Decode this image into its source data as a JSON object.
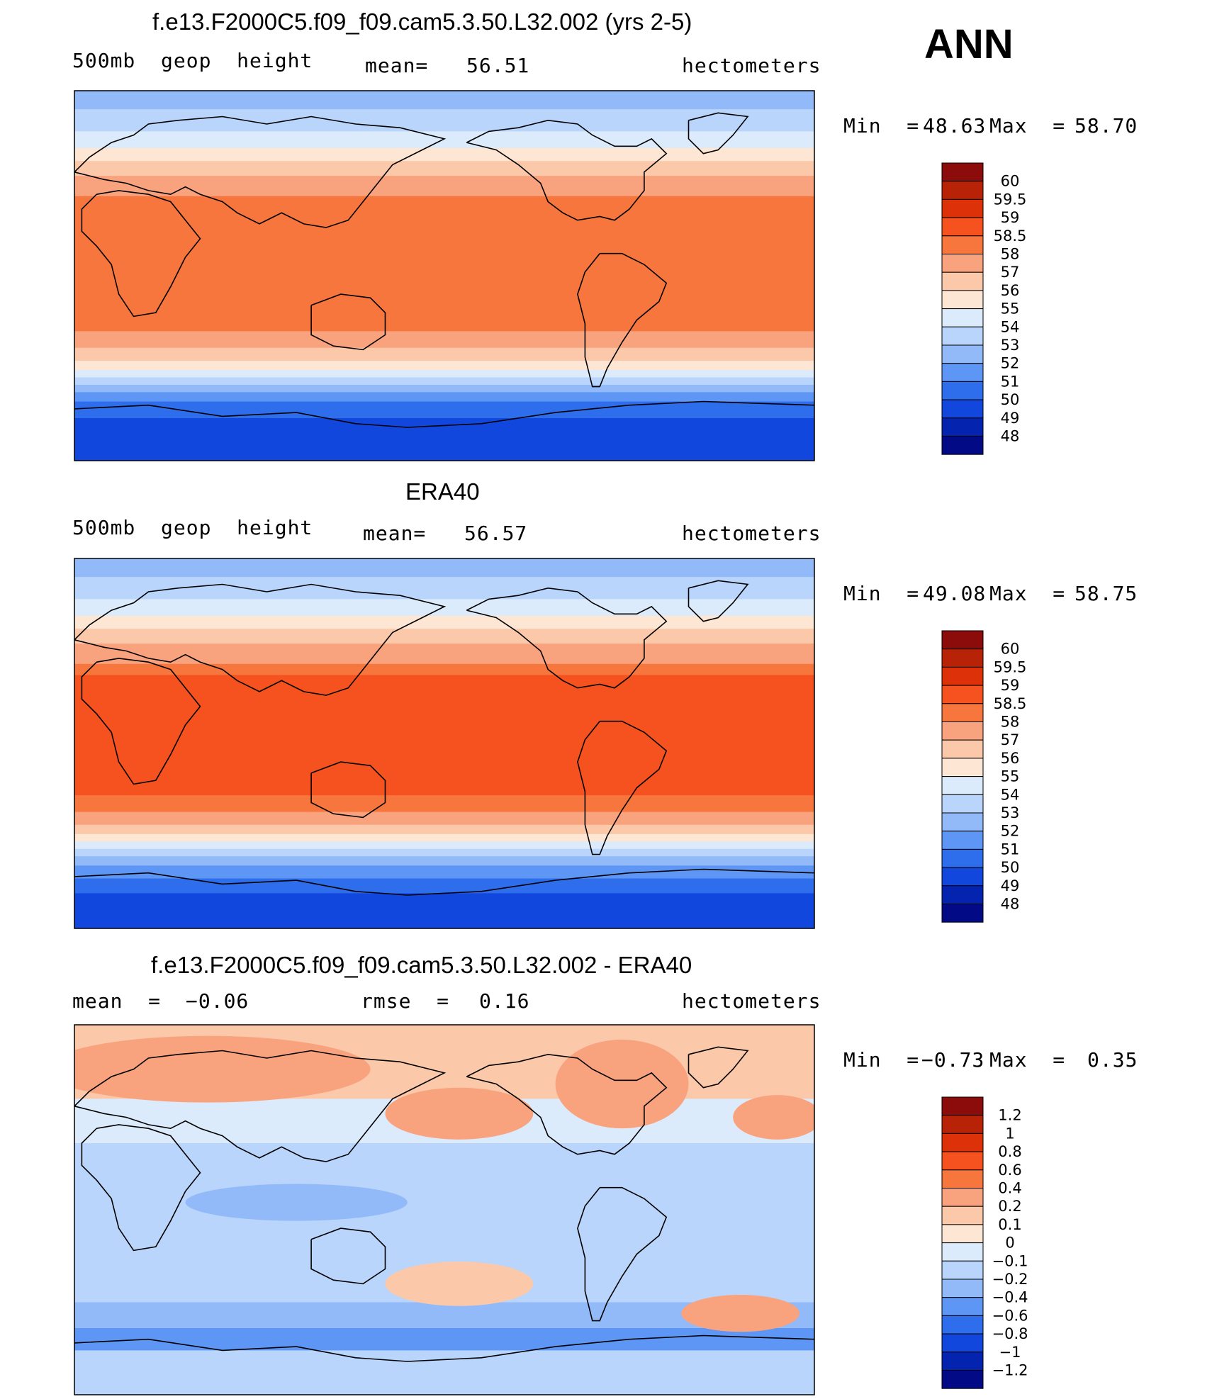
{
  "season": "ANN",
  "chart_data": [
    {
      "type": "heatmap",
      "title": "f.e13.F2000C5.f09_f09.cam5.3.50.L32.002 (yrs 2-5)",
      "variable": "500mb  geop  height",
      "stat_label": "mean=",
      "stat_value": "56.51",
      "units": "hectometers",
      "min_label": "Min  =",
      "min_value": "48.63",
      "max_label": "Max  =",
      "max_value": "58.70",
      "colorbar": {
        "labels": [
          "60",
          "59.5",
          "59",
          "58.5",
          "58",
          "57",
          "56",
          "55",
          "54",
          "53",
          "52",
          "51",
          "50",
          "49",
          "48"
        ],
        "colors": [
          "#8c0c0c",
          "#b82207",
          "#dd3109",
          "#f5521f",
          "#f7763e",
          "#f9a27e",
          "#fbc9aa",
          "#fde6d4",
          "#dcebfb",
          "#b9d5fb",
          "#92baf9",
          "#5e96f5",
          "#2e6deb",
          "#1247de",
          "#0424b0",
          "#020a86"
        ]
      },
      "map_bands": [
        {
          "to": 0.05,
          "color": "#92baf9"
        },
        {
          "to": 0.11,
          "color": "#b9d5fb"
        },
        {
          "to": 0.155,
          "color": "#dcebfb"
        },
        {
          "to": 0.19,
          "color": "#fde6d4"
        },
        {
          "to": 0.23,
          "color": "#fbc9aa"
        },
        {
          "to": 0.285,
          "color": "#f9a27e"
        },
        {
          "to": 0.65,
          "color": "#f7763e"
        },
        {
          "to": 0.695,
          "color": "#f9a27e"
        },
        {
          "to": 0.73,
          "color": "#fbc9aa"
        },
        {
          "to": 0.755,
          "color": "#fde6d4"
        },
        {
          "to": 0.775,
          "color": "#dcebfb"
        },
        {
          "to": 0.795,
          "color": "#b9d5fb"
        },
        {
          "to": 0.815,
          "color": "#92baf9"
        },
        {
          "to": 0.84,
          "color": "#5e96f5"
        },
        {
          "to": 0.885,
          "color": "#2e6deb"
        },
        {
          "to": 1.0,
          "color": "#1247de"
        }
      ]
    },
    {
      "type": "heatmap",
      "title": "ERA40",
      "variable": "500mb  geop  height",
      "stat_label": "mean=",
      "stat_value": "56.57",
      "units": "hectometers",
      "min_label": "Min  =",
      "min_value": "49.08",
      "max_label": "Max  =",
      "max_value": "58.75",
      "colorbar": {
        "labels": [
          "60",
          "59.5",
          "59",
          "58.5",
          "58",
          "57",
          "56",
          "55",
          "54",
          "53",
          "52",
          "51",
          "50",
          "49",
          "48"
        ],
        "colors": [
          "#8c0c0c",
          "#b82207",
          "#dd3109",
          "#f5521f",
          "#f7763e",
          "#f9a27e",
          "#fbc9aa",
          "#fde6d4",
          "#dcebfb",
          "#b9d5fb",
          "#92baf9",
          "#5e96f5",
          "#2e6deb",
          "#1247de",
          "#0424b0",
          "#020a86"
        ]
      },
      "map_bands": [
        {
          "to": 0.05,
          "color": "#92baf9"
        },
        {
          "to": 0.11,
          "color": "#b9d5fb"
        },
        {
          "to": 0.155,
          "color": "#dcebfb"
        },
        {
          "to": 0.19,
          "color": "#fde6d4"
        },
        {
          "to": 0.23,
          "color": "#fbc9aa"
        },
        {
          "to": 0.285,
          "color": "#f9a27e"
        },
        {
          "to": 0.315,
          "color": "#f7763e"
        },
        {
          "to": 0.64,
          "color": "#f5521f"
        },
        {
          "to": 0.685,
          "color": "#f7763e"
        },
        {
          "to": 0.72,
          "color": "#f9a27e"
        },
        {
          "to": 0.745,
          "color": "#fbc9aa"
        },
        {
          "to": 0.765,
          "color": "#fde6d4"
        },
        {
          "to": 0.785,
          "color": "#dcebfb"
        },
        {
          "to": 0.805,
          "color": "#b9d5fb"
        },
        {
          "to": 0.83,
          "color": "#92baf9"
        },
        {
          "to": 0.865,
          "color": "#5e96f5"
        },
        {
          "to": 0.905,
          "color": "#2e6deb"
        },
        {
          "to": 1.0,
          "color": "#1247de"
        }
      ]
    },
    {
      "type": "heatmap",
      "title": "f.e13.F2000C5.f09_f09.cam5.3.50.L32.002 - ERA40",
      "stat_label": "mean  =",
      "stat_value": "−0.06",
      "stat2_label": "rmse  =",
      "stat2_value": "0.16",
      "units": "hectometers",
      "min_label": "Min  =",
      "min_value": "−0.73",
      "max_label": "Max  =",
      "max_value": "0.35",
      "colorbar": {
        "labels": [
          "1.2",
          "1",
          "0.8",
          "0.6",
          "0.4",
          "0.2",
          "0.1",
          "0",
          "−0.1",
          "−0.2",
          "−0.4",
          "−0.6",
          "−0.8",
          "−1",
          "−1.2"
        ],
        "colors": [
          "#8c0c0c",
          "#b82207",
          "#dd3109",
          "#f5521f",
          "#f7763e",
          "#f9a27e",
          "#fbc9aa",
          "#fde6d4",
          "#dcebfb",
          "#b9d5fb",
          "#92baf9",
          "#5e96f5",
          "#2e6deb",
          "#1247de",
          "#0424b0",
          "#020a86"
        ]
      },
      "map_bands": [
        {
          "to": 0.2,
          "color": "#fbc9aa"
        },
        {
          "to": 0.32,
          "color": "#dcebfb"
        },
        {
          "to": 0.75,
          "color": "#b9d5fb"
        },
        {
          "to": 0.82,
          "color": "#92baf9"
        },
        {
          "to": 0.88,
          "color": "#5e96f5"
        },
        {
          "to": 1.0,
          "color": "#b9d5fb"
        }
      ]
    }
  ]
}
